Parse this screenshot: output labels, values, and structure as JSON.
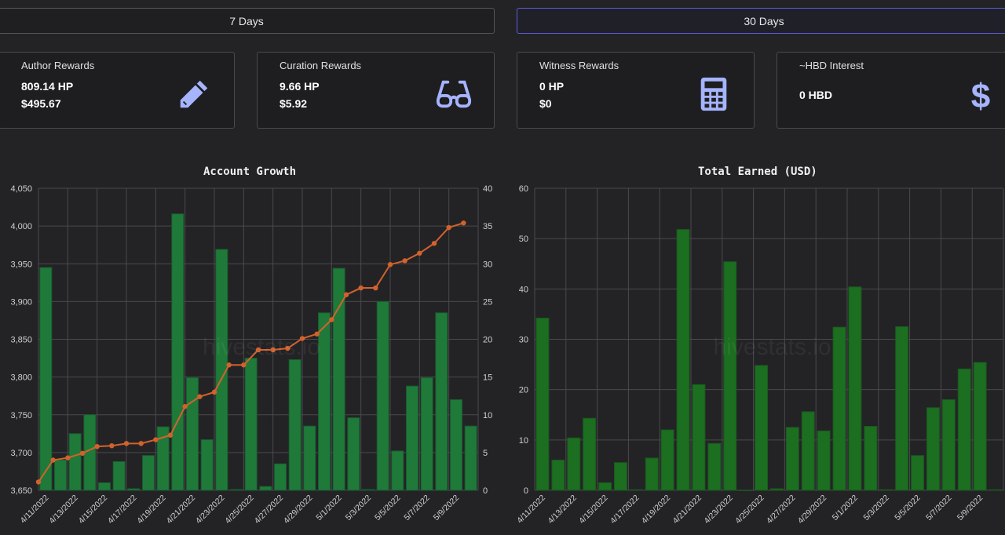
{
  "tabs": [
    {
      "label": "7 Days",
      "active": false
    },
    {
      "label": "30 Days",
      "active": true
    }
  ],
  "cards": [
    {
      "title": "Author Rewards",
      "line1": "809.14 HP",
      "line2": "$495.67",
      "icon": "pencil-icon"
    },
    {
      "title": "Curation Rewards",
      "line1": "9.66 HP",
      "line2": "$5.92",
      "icon": "glasses-icon"
    },
    {
      "title": "Witness Rewards",
      "line1": "0 HP",
      "line2": "$0",
      "icon": "calculator-icon"
    },
    {
      "title": "~HBD Interest",
      "line1": "0 HBD",
      "line2": "",
      "icon": "dollar-icon"
    }
  ],
  "colors": {
    "accent_icon": "#a5b4fc",
    "bar": "#1f7a3a",
    "line": "#d2622c",
    "active_tab_border": "#5b5bd6"
  },
  "watermark": "hivestats.io",
  "chart_data": [
    {
      "type": "bar+line",
      "title": "Account Growth",
      "categories": [
        "4/11/2022",
        "4/12/2022",
        "4/13/2022",
        "4/14/2022",
        "4/15/2022",
        "4/16/2022",
        "4/17/2022",
        "4/18/2022",
        "4/19/2022",
        "4/20/2022",
        "4/21/2022",
        "4/22/2022",
        "4/23/2022",
        "4/24/2022",
        "4/25/2022",
        "4/26/2022",
        "4/27/2022",
        "4/28/2022",
        "4/29/2022",
        "4/30/2022",
        "5/1/2022",
        "5/2/2022",
        "5/3/2022",
        "5/4/2022",
        "5/5/2022",
        "5/6/2022",
        "5/7/2022",
        "5/8/2022",
        "5/9/2022",
        "5/10/2022"
      ],
      "tick_labels": [
        "4/11/2022",
        "4/13/2022",
        "4/15/2022",
        "4/17/2022",
        "4/19/2022",
        "4/21/2022",
        "4/23/2022",
        "4/25/2022",
        "4/27/2022",
        "4/29/2022",
        "5/1/2022",
        "5/3/2022",
        "5/5/2022",
        "5/7/2022",
        "5/9/2022"
      ],
      "line_values": [
        3661,
        3690,
        3693,
        3699,
        3708,
        3709,
        3712,
        3712,
        3717,
        3723,
        3761,
        3774,
        3780,
        3816,
        3816,
        3836,
        3836,
        3838,
        3851,
        3857,
        3876,
        3909,
        3918,
        3918,
        3949,
        3954,
        3964,
        3977,
        3998,
        4004
      ],
      "bar_values": [
        29.5,
        4,
        7.5,
        10,
        1,
        3.8,
        0.2,
        4.6,
        8.4,
        36.6,
        14.9,
        6.7,
        31.9,
        0.1,
        17.5,
        0.5,
        3.5,
        17.3,
        8.5,
        23.5,
        29.4,
        9.6,
        0.1,
        25,
        5.2,
        13.8,
        14.9,
        23.5,
        12,
        8.5
      ],
      "ylim": [
        3650,
        4050
      ],
      "y2lim": [
        0,
        40
      ],
      "yticks": [
        "3,650",
        "3,700",
        "3,750",
        "3,800",
        "3,850",
        "3,900",
        "3,950",
        "4,000",
        "4,050"
      ],
      "y2ticks": [
        "0",
        "5",
        "10",
        "15",
        "20",
        "25",
        "30",
        "35",
        "40"
      ],
      "grid": true
    },
    {
      "type": "bar",
      "title": "Total Earned (USD)",
      "categories": [
        "4/11/2022",
        "4/12/2022",
        "4/13/2022",
        "4/14/2022",
        "4/15/2022",
        "4/16/2022",
        "4/17/2022",
        "4/18/2022",
        "4/19/2022",
        "4/20/2022",
        "4/21/2022",
        "4/22/2022",
        "4/23/2022",
        "4/24/2022",
        "4/25/2022",
        "4/26/2022",
        "4/27/2022",
        "4/28/2022",
        "4/29/2022",
        "4/30/2022",
        "5/1/2022",
        "5/2/2022",
        "5/3/2022",
        "5/4/2022",
        "5/5/2022",
        "5/6/2022",
        "5/7/2022",
        "5/8/2022",
        "5/9/2022",
        "5/10/2022"
      ],
      "tick_labels": [
        "4/11/2022",
        "4/13/2022",
        "4/15/2022",
        "4/17/2022",
        "4/19/2022",
        "4/21/2022",
        "4/23/2022",
        "4/25/2022",
        "4/27/2022",
        "4/29/2022",
        "5/1/2022",
        "5/3/2022",
        "5/5/2022",
        "5/7/2022",
        "5/9/2022"
      ],
      "values": [
        34.2,
        6,
        10.4,
        14.3,
        1.5,
        5.5,
        0.1,
        6.4,
        12,
        51.8,
        21,
        9.3,
        45.4,
        0,
        24.8,
        0.3,
        12.5,
        15.6,
        11.8,
        32.4,
        40.4,
        12.7,
        0.1,
        32.5,
        6.9,
        16.4,
        18,
        24.1,
        25.4,
        0.1
      ],
      "ylim": [
        0,
        60
      ],
      "yticks": [
        "0",
        "10",
        "20",
        "30",
        "40",
        "50",
        "60"
      ],
      "grid": true
    }
  ]
}
